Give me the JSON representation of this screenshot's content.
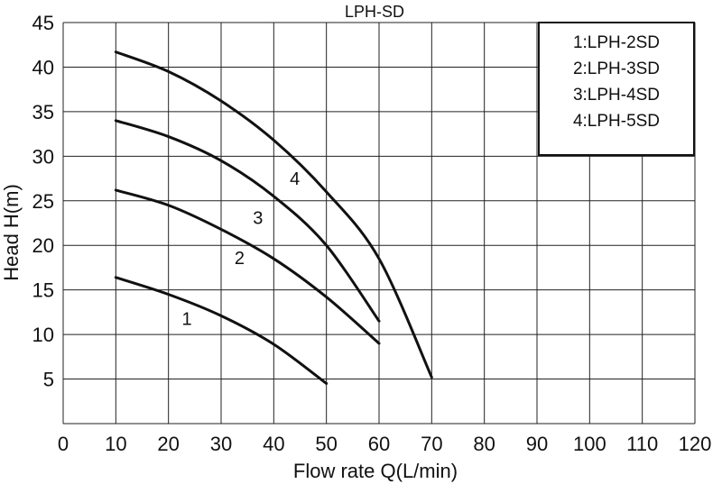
{
  "chart_data": {
    "type": "line",
    "title": "LPH-SD",
    "xlabel": "Flow rate Q(L/min)",
    "ylabel": "Head H(m)",
    "xlim": [
      0,
      120
    ],
    "ylim": [
      0,
      45
    ],
    "x_ticks": [
      "0",
      "10",
      "20",
      "30",
      "40",
      "50",
      "60",
      "70",
      "80",
      "90",
      "100",
      "110",
      "120"
    ],
    "y_ticks": [
      "5",
      "10",
      "15",
      "20",
      "25",
      "30",
      "35",
      "40",
      "45"
    ],
    "grid": true,
    "legend_position": "top-right",
    "legend": [
      "1:LPH-2SD",
      "2:LPH-3SD",
      "3:LPH-4SD",
      "4:LPH-5SD"
    ],
    "series": [
      {
        "name": "1",
        "x": [
          10,
          20,
          30,
          40,
          50
        ],
        "y": [
          16.4,
          14.5,
          12.1,
          8.9,
          4.5
        ]
      },
      {
        "name": "2",
        "x": [
          10,
          20,
          30,
          40,
          50,
          60
        ],
        "y": [
          26.2,
          24.5,
          21.8,
          18.5,
          14.2,
          9.0
        ]
      },
      {
        "name": "3",
        "x": [
          10,
          20,
          30,
          40,
          50,
          60
        ],
        "y": [
          34.0,
          32.2,
          29.5,
          25.5,
          20.0,
          11.5
        ]
      },
      {
        "name": "4",
        "x": [
          10,
          20,
          30,
          40,
          50,
          60,
          70
        ],
        "y": [
          41.7,
          39.5,
          36.2,
          31.8,
          26.0,
          18.5,
          5.2
        ]
      }
    ],
    "curve_labels": [
      {
        "text": "1",
        "x": 23.5,
        "y": 11.8
      },
      {
        "text": "2",
        "x": 33.5,
        "y": 18.6
      },
      {
        "text": "3",
        "x": 37.0,
        "y": 23.1
      },
      {
        "text": "4",
        "x": 44.0,
        "y": 27.5
      }
    ]
  }
}
